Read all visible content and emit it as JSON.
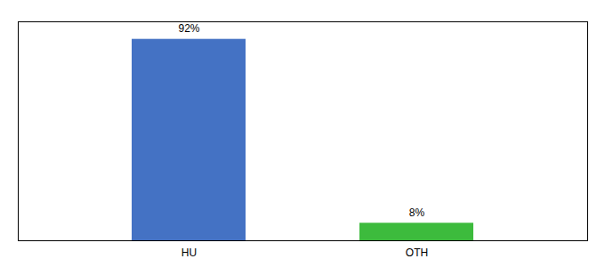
{
  "chart_data": {
    "type": "bar",
    "categories": [
      "HU",
      "OTH"
    ],
    "values": [
      92,
      8
    ],
    "value_labels": [
      "92%",
      "8%"
    ],
    "colors": [
      "#4472c4",
      "#3dbb3d"
    ],
    "ylim": [
      0,
      100
    ],
    "yticks": [],
    "data_labels": true,
    "tick_labels": "x"
  }
}
